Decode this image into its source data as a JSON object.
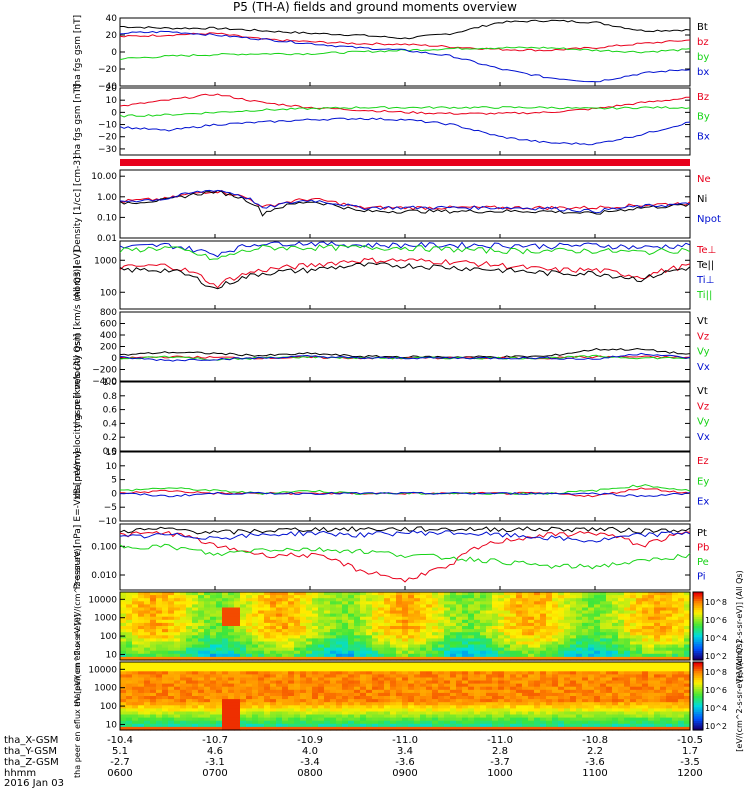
{
  "title": "P5 (TH-A) fields and ground moments overview",
  "date_label": "2016 Jan 03",
  "colors": {
    "black": "#000000",
    "red": "#e8001c",
    "green": "#17d317",
    "blue": "#0010d0"
  },
  "ephemeris": {
    "rows": [
      {
        "label": "tha_X-GSM",
        "values": [
          "-10.4",
          "-10.7",
          "-10.9",
          "-11.0",
          "-11.0",
          "-10.8",
          "-10.5"
        ]
      },
      {
        "label": "tha_Y-GSM",
        "values": [
          "5.1",
          "4.6",
          "4.0",
          "3.4",
          "2.8",
          "2.2",
          "1.7"
        ]
      },
      {
        "label": "tha_Z-GSM",
        "values": [
          "-2.7",
          "-3.1",
          "-3.4",
          "-3.6",
          "-3.7",
          "-3.6",
          "-3.5"
        ]
      },
      {
        "label": "hhmm",
        "values": [
          "0600",
          "0700",
          "0800",
          "0900",
          "1000",
          "1100",
          "1200"
        ]
      }
    ]
  },
  "chart_data": [
    {
      "type": "line",
      "ylabel": "tha fgs gsm [nT]",
      "ylim": [
        -40,
        40
      ],
      "yticks": [
        "40",
        "20",
        "0",
        "−20",
        "−40"
      ],
      "x": [
        "0600",
        "0630",
        "0700",
        "0730",
        "0800",
        "0830",
        "0900",
        "0930",
        "1000",
        "1030",
        "1100",
        "1130",
        "1200"
      ],
      "series": [
        {
          "name": "Bt",
          "color": "black",
          "values": [
            30,
            28,
            28,
            25,
            22,
            20,
            16,
            22,
            35,
            37,
            35,
            25,
            26
          ]
        },
        {
          "name": "bz",
          "color": "red",
          "values": [
            18,
            20,
            22,
            15,
            12,
            10,
            9,
            6,
            3,
            2,
            5,
            10,
            14
          ]
        },
        {
          "name": "by",
          "color": "green",
          "values": [
            -8,
            -5,
            -3,
            -2,
            -2,
            0,
            2,
            4,
            5,
            5,
            2,
            0,
            3
          ]
        },
        {
          "name": "bx",
          "color": "blue",
          "values": [
            22,
            24,
            20,
            15,
            10,
            5,
            2,
            -5,
            -20,
            -30,
            -35,
            -25,
            -20
          ]
        }
      ]
    },
    {
      "type": "line",
      "ylabel": "tha fgs gsm [nT]",
      "ylim": [
        -35,
        20
      ],
      "yticks": [
        "20",
        "10",
        "0",
        "−10",
        "−20",
        "−30"
      ],
      "x": [
        "0600",
        "0630",
        "0700",
        "0730",
        "0800",
        "0830",
        "0900",
        "0930",
        "1000",
        "1030",
        "1100",
        "1130",
        "1200"
      ],
      "series": [
        {
          "name": "Bz",
          "color": "red",
          "values": [
            5,
            10,
            15,
            8,
            4,
            2,
            0,
            -1,
            -1,
            0,
            3,
            8,
            12
          ]
        },
        {
          "name": "By",
          "color": "green",
          "values": [
            -3,
            -2,
            0,
            2,
            3,
            4,
            4,
            4,
            4,
            4,
            3,
            4,
            4
          ]
        },
        {
          "name": "Bx",
          "color": "blue",
          "values": [
            -12,
            -15,
            -10,
            -8,
            -6,
            -5,
            -6,
            -10,
            -20,
            -25,
            -26,
            -18,
            -8
          ]
        }
      ]
    },
    {
      "type": "line",
      "ylabel": "Density [1/cc] [cm-3]",
      "yscale": "log",
      "ylim": [
        0.01,
        20
      ],
      "yticks": [
        "10.00",
        "1.00",
        "0.10",
        "0.01"
      ],
      "x": [
        "0600",
        "0630",
        "0700",
        "0730",
        "0800",
        "0830",
        "0900",
        "0930",
        "1000",
        "1030",
        "1100",
        "1130",
        "1200"
      ],
      "series": [
        {
          "name": "Ne",
          "color": "red",
          "values": [
            0.6,
            0.8,
            2.0,
            0.3,
            0.8,
            0.3,
            0.3,
            0.3,
            0.3,
            0.3,
            0.3,
            0.4,
            0.5
          ]
        },
        {
          "name": "Ni",
          "color": "black",
          "values": [
            0.5,
            0.7,
            1.8,
            0.15,
            0.6,
            0.2,
            0.2,
            0.2,
            0.2,
            0.2,
            0.15,
            0.3,
            0.4
          ]
        },
        {
          "name": "Npot",
          "color": "blue",
          "values": [
            0.6,
            0.8,
            2.2,
            0.25,
            0.7,
            0.3,
            0.3,
            0.3,
            0.3,
            0.28,
            0.2,
            0.35,
            0.45
          ]
        }
      ]
    },
    {
      "type": "line",
      "ylabel": "mom3 [eV]",
      "yscale": "log",
      "ylim": [
        30,
        4000
      ],
      "yticks": [
        "1000",
        "100"
      ],
      "x": [
        "0600",
        "0630",
        "0700",
        "0730",
        "0800",
        "0830",
        "0900",
        "0930",
        "1000",
        "1030",
        "1100",
        "1130",
        "1200"
      ],
      "series": [
        {
          "name": "Te⊥",
          "color": "red",
          "values": [
            600,
            700,
            150,
            500,
            700,
            1000,
            1000,
            900,
            700,
            500,
            500,
            300,
            700
          ]
        },
        {
          "name": "Te||",
          "color": "black",
          "values": [
            500,
            500,
            120,
            400,
            500,
            700,
            700,
            600,
            500,
            400,
            400,
            250,
            600
          ]
        },
        {
          "name": "Ti⊥",
          "color": "blue",
          "values": [
            2500,
            3000,
            1500,
            3500,
            3500,
            3000,
            3000,
            3000,
            3000,
            2800,
            3000,
            2500,
            3000
          ]
        },
        {
          "name": "Ti||",
          "color": "green",
          "values": [
            2000,
            2500,
            1000,
            2500,
            2500,
            2500,
            2500,
            2200,
            2000,
            2000,
            2000,
            1800,
            2200
          ]
        }
      ]
    },
    {
      "type": "line",
      "ylabel": "tha peir velocity gsm [km/s (All Qs)]",
      "ylim": [
        -400,
        800
      ],
      "yticks": [
        "800",
        "600",
        "400",
        "200",
        "0",
        "−200",
        "−400"
      ],
      "x": [
        "0600",
        "0630",
        "0700",
        "0730",
        "0800",
        "0830",
        "0900",
        "0930",
        "1000",
        "1030",
        "1100",
        "1130",
        "1200"
      ],
      "series": [
        {
          "name": "Vt",
          "color": "black",
          "values": [
            50,
            100,
            80,
            40,
            80,
            30,
            20,
            20,
            20,
            30,
            150,
            150,
            60
          ]
        },
        {
          "name": "Vz",
          "color": "red",
          "values": [
            0,
            20,
            10,
            0,
            10,
            0,
            0,
            0,
            0,
            0,
            20,
            20,
            10
          ]
        },
        {
          "name": "Vy",
          "color": "green",
          "values": [
            -20,
            30,
            -30,
            0,
            20,
            0,
            0,
            0,
            0,
            0,
            30,
            0,
            0
          ]
        },
        {
          "name": "Vx",
          "color": "blue",
          "values": [
            10,
            -40,
            -20,
            0,
            30,
            0,
            0,
            0,
            0,
            0,
            -20,
            80,
            0
          ]
        }
      ]
    },
    {
      "type": "line",
      "ylabel": "tha peer velocity gsm [km/s (All Qs)]",
      "ylim": [
        0,
        1
      ],
      "yticks": [
        "1.0",
        "0.8",
        "0.6",
        "0.4",
        "0.2",
        "0.0"
      ],
      "x": [],
      "series": [
        {
          "name": "Vt",
          "color": "black",
          "values": []
        },
        {
          "name": "Vz",
          "color": "red",
          "values": []
        },
        {
          "name": "Vy",
          "color": "green",
          "values": []
        },
        {
          "name": "Vx",
          "color": "blue",
          "values": []
        }
      ]
    },
    {
      "type": "line",
      "ylabel": "E=-VxB [mV/m]",
      "ylim": [
        -10,
        15
      ],
      "yticks": [
        "15",
        "10",
        "5",
        "0",
        "−5",
        "−10"
      ],
      "x": [
        "0600",
        "0630",
        "0700",
        "0730",
        "0800",
        "0830",
        "0900",
        "0930",
        "1000",
        "1030",
        "1100",
        "1130",
        "1200"
      ],
      "series": [
        {
          "name": "Ez",
          "color": "red",
          "values": [
            0,
            1,
            0,
            0,
            0,
            0,
            0,
            0,
            0,
            0,
            -1,
            2,
            0
          ]
        },
        {
          "name": "Ey",
          "color": "green",
          "values": [
            1,
            2,
            1,
            0,
            1,
            0,
            0,
            0,
            0,
            0,
            1,
            3,
            1
          ]
        },
        {
          "name": "Ex",
          "color": "blue",
          "values": [
            0,
            -1,
            0,
            0,
            0,
            0,
            0,
            0,
            0,
            0,
            0,
            -1,
            0
          ]
        }
      ]
    },
    {
      "type": "line",
      "ylabel": "Pressure [nPa]",
      "yscale": "log",
      "ylim": [
        0.003,
        0.6
      ],
      "yticks": [
        "0.100",
        "0.010"
      ],
      "x": [
        "0600",
        "0630",
        "0700",
        "0730",
        "0800",
        "0830",
        "0900",
        "0930",
        "1000",
        "1030",
        "1100",
        "1130",
        "1200"
      ],
      "series": [
        {
          "name": "Pt",
          "color": "black",
          "values": [
            0.35,
            0.4,
            0.3,
            0.35,
            0.4,
            0.4,
            0.4,
            0.4,
            0.4,
            0.4,
            0.4,
            0.35,
            0.4
          ]
        },
        {
          "name": "Pb",
          "color": "red",
          "values": [
            0.25,
            0.3,
            0.1,
            0.05,
            0.05,
            0.015,
            0.006,
            0.02,
            0.15,
            0.25,
            0.3,
            0.1,
            0.3
          ]
        },
        {
          "name": "Pe",
          "color": "green",
          "values": [
            0.1,
            0.1,
            0.05,
            0.08,
            0.08,
            0.07,
            0.05,
            0.04,
            0.03,
            0.02,
            0.02,
            0.03,
            0.05
          ]
        },
        {
          "name": "Pi",
          "color": "blue",
          "values": [
            0.2,
            0.25,
            0.2,
            0.25,
            0.3,
            0.25,
            0.3,
            0.3,
            0.25,
            0.2,
            0.15,
            0.25,
            0.3
          ]
        }
      ]
    },
    {
      "type": "heatmap",
      "ylabel": "tha peir en eflux eV [eV/(cm^2-s-sr-eV)]",
      "yscale": "log",
      "ylim": [
        5,
        25000
      ],
      "yticks": [
        "10000",
        "1000",
        "100",
        "10"
      ],
      "colorbar": {
        "label": "[eV/(cm^2-s-sr-eV)] (All Qs)",
        "ticks": [
          "10^8",
          "10^6",
          "10^4",
          "10^2"
        ]
      }
    },
    {
      "type": "heatmap",
      "ylabel": "tha peer en eflux eV [eV/(cm^2-s-sr-eV)]",
      "yscale": "log",
      "ylim": [
        5,
        25000
      ],
      "yticks": [
        "10000",
        "1000",
        "100",
        "10"
      ],
      "colorbar": {
        "label": "[eV/(cm^2-s-sr-eV)] (All Qs)",
        "ticks": [
          "10^8",
          "10^6",
          "10^4",
          "10^2"
        ]
      }
    }
  ]
}
